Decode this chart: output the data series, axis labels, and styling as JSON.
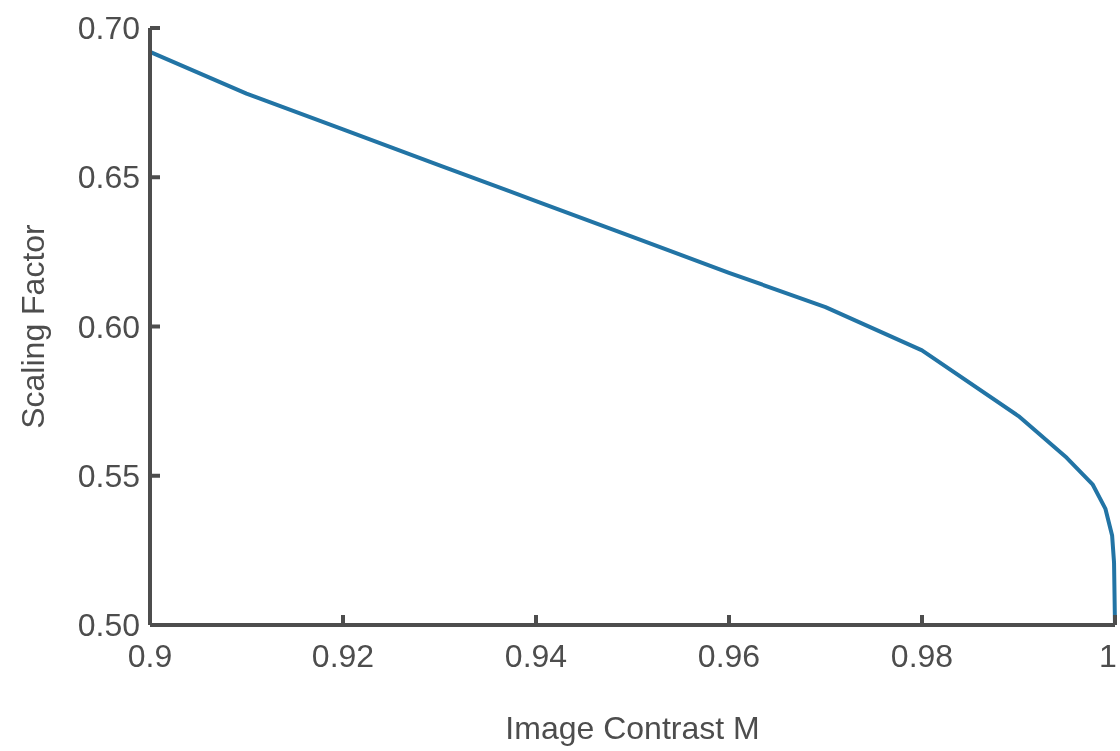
{
  "chart_data": {
    "type": "line",
    "xlabel": "Image Contrast M",
    "ylabel": "Scaling Factor",
    "x": [
      0.9,
      0.91,
      0.92,
      0.93,
      0.94,
      0.95,
      0.96,
      0.97,
      0.98,
      0.99,
      0.995,
      0.9977,
      0.999,
      0.9997,
      0.9999,
      1.0
    ],
    "series": [
      {
        "color": "#2274a5",
        "values": [
          0.692,
          0.678,
          0.666,
          0.654,
          0.642,
          0.63,
          0.618,
          0.6065,
          0.592,
          0.57,
          0.556,
          0.547,
          0.539,
          0.53,
          0.521,
          0.5
        ]
      }
    ],
    "xlim": [
      0.9,
      1.0
    ],
    "ylim": [
      0.5,
      0.7
    ],
    "xticks": [
      {
        "value": 0.9,
        "label": "0.9"
      },
      0.92,
      0.94,
      0.96,
      0.98,
      {
        "value": 1,
        "label": "1"
      }
    ],
    "yticks": [
      {
        "value": 0.5,
        "label": "0.50"
      },
      0.55,
      {
        "value": 0.6,
        "label": "0.60"
      },
      0.65,
      {
        "value": 0.7,
        "label": "0.70"
      }
    ],
    "grid": false,
    "marker": "none",
    "line_style": "solid"
  }
}
